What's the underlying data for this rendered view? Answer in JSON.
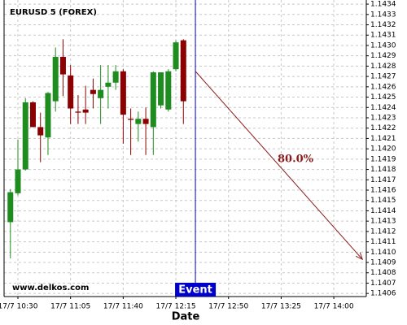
{
  "chart_data": {
    "type": "candlestick",
    "title": "EURUSD 5 (FOREX)",
    "xlabel": "Date",
    "watermark": "www.delkos.com",
    "x": [
      625,
      630,
      635,
      640,
      645,
      650,
      655,
      660,
      665,
      670,
      675,
      680,
      685,
      690,
      695,
      700,
      705,
      710,
      715,
      720,
      725,
      730,
      735,
      740
    ],
    "open": [
      1.14129,
      1.14157,
      1.1418,
      1.14245,
      1.14221,
      1.14211,
      1.14246,
      1.14289,
      1.14271,
      1.14236,
      1.14238,
      1.14257,
      1.14249,
      1.1426,
      1.14264,
      1.14275,
      1.14229,
      1.14224,
      1.14229,
      1.14221,
      1.14242,
      1.14238,
      1.14277,
      1.14305
    ],
    "high": [
      1.14161,
      1.14209,
      1.14249,
      1.14246,
      1.14235,
      1.14255,
      1.14298,
      1.14306,
      1.14281,
      1.14252,
      1.14261,
      1.14268,
      1.14281,
      1.14281,
      1.14281,
      1.14277,
      1.14239,
      1.14236,
      1.1424,
      1.14275,
      1.14274,
      1.14277,
      1.14305,
      1.14306
    ],
    "low": [
      1.14094,
      1.14155,
      1.14179,
      1.14221,
      1.14187,
      1.14194,
      1.14236,
      1.14251,
      1.14224,
      1.14224,
      1.14224,
      1.14239,
      1.14224,
      1.14239,
      1.14257,
      1.14205,
      1.14194,
      1.14207,
      1.14194,
      1.14194,
      1.14239,
      1.14236,
      1.14275,
      1.14224
    ],
    "close": [
      1.14158,
      1.1418,
      1.14245,
      1.14221,
      1.14213,
      1.14254,
      1.14289,
      1.14272,
      1.14239,
      1.14235,
      1.14235,
      1.14253,
      1.14257,
      1.14264,
      1.14275,
      1.14233,
      1.14228,
      1.14229,
      1.14224,
      1.14274,
      1.14274,
      1.14275,
      1.14303,
      1.14246
    ],
    "up_color": "#1e8c1e",
    "down_color": "#8b0000",
    "xlim": [
      620.8,
      861.6
    ],
    "xticks": [
      {
        "value": 630,
        "label": "17/7 10:30"
      },
      {
        "value": 665,
        "label": "17/7 11:05"
      },
      {
        "value": 700,
        "label": "17/7 11:40"
      },
      {
        "value": 735,
        "label": "17/7 12:15"
      },
      {
        "value": 770,
        "label": "17/7 12:50"
      },
      {
        "value": 805,
        "label": "17/7 13:25"
      },
      {
        "value": 840,
        "label": "17/7 14:00"
      }
    ],
    "ylim": [
      1.14057,
      1.14344
    ],
    "yticks": [
      1.1406,
      1.1407,
      1.1408,
      1.1409,
      {
        "value": 1.141,
        "label": "1.1410"
      },
      1.1411,
      1.1412,
      1.1413,
      1.1414,
      1.1415,
      1.1416,
      1.1417,
      1.1418,
      1.1419,
      {
        "value": 1.142,
        "label": "1.1420"
      },
      1.1421,
      1.1422,
      1.1423,
      1.1424,
      1.1425,
      1.1426,
      1.1427,
      1.1428,
      1.1429,
      {
        "value": 1.143,
        "label": "1.1430"
      },
      1.1431,
      1.1432,
      1.1433,
      1.1434
    ],
    "grid": true,
    "event": {
      "label": "Event",
      "x": 748,
      "color": "#0000cc"
    },
    "arrow": {
      "x": [
        748,
        859
      ],
      "y": [
        1.14275,
        1.14093
      ],
      "label": "80.0%",
      "color": "#8b1a1a"
    }
  }
}
